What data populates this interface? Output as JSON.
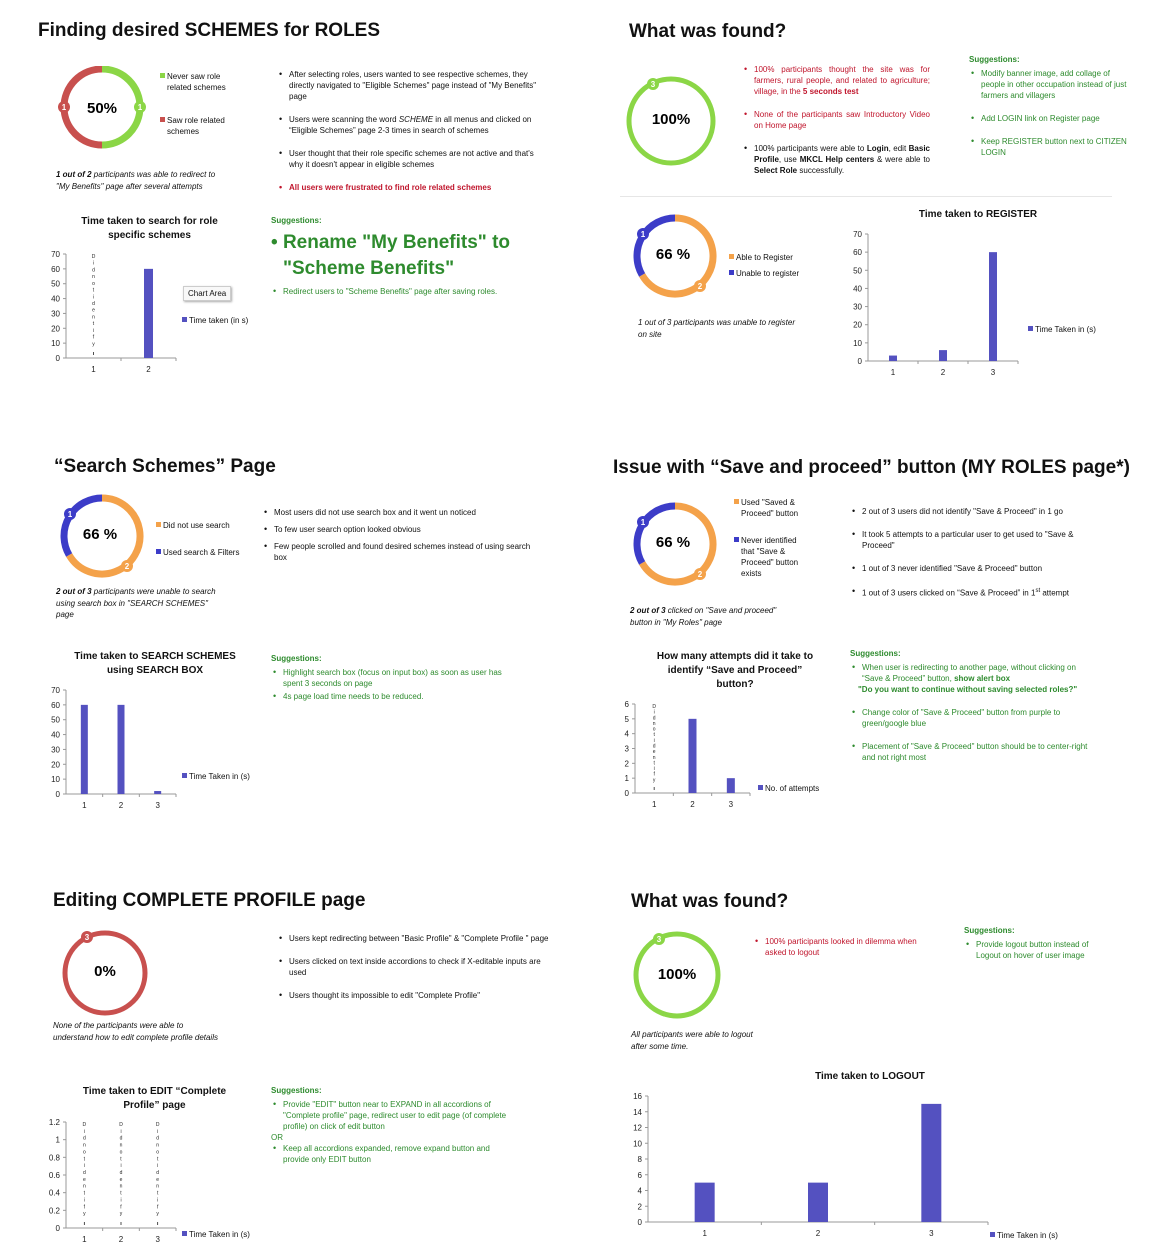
{
  "colors": {
    "bar": "#5451c0",
    "green": "#8bd646",
    "red": "#c8504e",
    "orange": "#f4a24a",
    "blue": "#3c3cc8"
  },
  "s1": {
    "title": "Finding desired SCHEMES for ROLES",
    "donut_pct": "50%",
    "marker_a": "1",
    "marker_b": "1",
    "legend_green": "Never saw role related schemes",
    "legend_red": "Saw role related schemes",
    "note": "1 out of 2 participants was able to redirect to \"My Benefits\" page after several attempts",
    "note_bold": "1 out of 2",
    "note_rest": " participants was able to redirect to \"My Benefits\" page after several attempts",
    "bullets": [
      "After selecting roles, users wanted to see respective schemes, they directly navigated to \"Eligible Schemes\" page instead of \"My Benefits\" page",
      "Users were scanning the word SCHEME in all menus and clicked on \"Eligible Schemes\" page 2-3 times in search of schemes",
      "User thought that their role specific schemes are not active and that's why it doesn't appear in eligible schemes",
      "All users were frustrated to find role related schemes"
    ],
    "sugg_title": "Suggestions:",
    "sugg_big": "Rename \"My Benefits\" to \"Scheme Benefits\"",
    "sugg_small": "Redirect users to \"Scheme Benefits\" page after saving roles.",
    "chart_area_label": "Chart Area"
  },
  "s2": {
    "title": "What was found?",
    "donut_pct": "100%",
    "marker": "3",
    "bullets_red": [
      "100% participants thought the site was for farmers, rural people, and related to agriculture; village, in the 5 seconds test",
      "None of the participants saw Introductory Video on Home page"
    ],
    "bullet_black": "100% participants were able to Login, edit Basic Profile, use MKCL Help centers & were able to Select Role successfully.",
    "sugg_title": "Suggestions:",
    "sugg": [
      "Modify banner image, add collage of people in other occupation instead of just farmers and villagers",
      "Add LOGIN link on Register page",
      "Keep REGISTER button next to CITIZEN LOGIN"
    ]
  },
  "s3": {
    "donut_pct": "66 %",
    "marker_a": "1",
    "marker_b": "2",
    "legend_orange": "Able to Register",
    "legend_blue": "Unable to register",
    "note": "1 out of 3 participants was unable to register on site"
  },
  "s4": {
    "title": "“Search Schemes” Page",
    "donut_pct": "66 %",
    "marker_a": "1",
    "marker_b": "2",
    "legend_orange": "Did not use search",
    "legend_blue": "Used search & Filters",
    "note_bold": "2 out of 3",
    "note_rest": " participants were unable to search using search box in \"SEARCH SCHEMES\" page",
    "bullets": [
      "Most users did not use search box and it went un noticed",
      "To few user search option looked obvious",
      "Few people scrolled and found desired schemes instead of using search box"
    ],
    "sugg_title": "Suggestions:",
    "sugg": [
      "Highlight search box (focus on input box) as soon as user has spent 3 seconds on page",
      "4s page load time needs to be reduced."
    ]
  },
  "s5": {
    "title": "Issue with “Save and proceed” button (MY ROLES page*)",
    "donut_pct": "66 %",
    "marker_a": "1",
    "marker_b": "2",
    "legend_orange": "Used \"Saved & Proceed\" button",
    "legend_blue": "Never identified that \"Save & Proceed\" button exists",
    "note_bold": "2 out of 3",
    "note_rest": " clicked on \"Save and proceed\" button in \"My Roles\" page",
    "bullets": [
      "2 out of 3 users did not identify \"Save & Proceed\" in 1 go",
      "It took 5 attempts to a particular user to get used to \"Save & Proceed\"",
      "1 out of 3 never identified \"Save & Proceed\" button",
      "1 out of 3 users clicked on \"Save & Proceed\" in 1st attempt"
    ],
    "sugg_title": "Suggestions:",
    "sugg1": "When user is redirecting to another page, without clicking on \"Save & Proceed\" button, show alert box",
    "sugg1_quote": "\"Do you want to continue without saving selected roles?\"",
    "sugg2": "Change color of \"Save & Proceed\" button from purple to green/google blue",
    "sugg3": "Placement of \"Save & Proceed\" button should be to center-right and not right most"
  },
  "s6": {
    "title": "Editing COMPLETE PROFILE page",
    "donut_pct": "0%",
    "marker": "3",
    "note": "None of the participants were able to understand how to edit complete profile details",
    "bullets": [
      "Users kept redirecting between \"Basic Profile\" & \"Complete Profile \" page",
      "Users clicked on text inside accordions to check if X-editable inputs are used",
      "Users thought its impossible to edit \"Complete Profile\""
    ],
    "sugg_title": "Suggestions:",
    "sugg1": "Provide \"EDIT\" button near to EXPAND in all accordions of \"Complete profile\" page, redirect user to edit page (of complete profile) on click of edit button",
    "or": "OR",
    "sugg2": "Keep all accordions expanded, remove expand button and provide only EDIT button"
  },
  "s7": {
    "title": "What was found?",
    "donut_pct": "100%",
    "marker": "3",
    "bullet": "100% participants looked in dilemma when asked to logout",
    "note": "All participants were able to logout after some time.",
    "sugg_title": "Suggestions:",
    "sugg": "Provide logout button instead of Logout on hover of user image"
  },
  "chart_data": [
    {
      "id": "c1",
      "type": "bar",
      "title": "Time taken to search for role specific schemes",
      "categories": [
        "1",
        "2"
      ],
      "series": [
        {
          "name": "Time taken (in s)",
          "values": [
            null,
            60
          ]
        }
      ],
      "ylim": [
        0,
        70
      ],
      "yticks": [
        0,
        10,
        20,
        30,
        40,
        50,
        60,
        70
      ],
      "bar_labels": [
        "Did not identify",
        ""
      ]
    },
    {
      "id": "c2",
      "type": "bar",
      "title": "Time taken to REGISTER",
      "categories": [
        "1",
        "2",
        "3"
      ],
      "series": [
        {
          "name": "Time Taken in (s)",
          "values": [
            3,
            6,
            60
          ]
        }
      ],
      "ylim": [
        0,
        70
      ],
      "yticks": [
        0,
        10,
        20,
        30,
        40,
        50,
        60,
        70
      ]
    },
    {
      "id": "c3",
      "type": "bar",
      "title": "Time taken to SEARCH SCHEMES using SEARCH BOX",
      "categories": [
        "1",
        "2",
        "3"
      ],
      "series": [
        {
          "name": "Time Taken in (s)",
          "values": [
            60,
            60,
            2
          ]
        }
      ],
      "ylim": [
        0,
        70
      ],
      "yticks": [
        0,
        10,
        20,
        30,
        40,
        50,
        60,
        70
      ]
    },
    {
      "id": "c4",
      "type": "bar",
      "title": "How many attempts did it take to identify “Save and Proceed” button?",
      "categories": [
        "1",
        "2",
        "3"
      ],
      "series": [
        {
          "name": "No. of attempts",
          "values": [
            null,
            5,
            1
          ]
        }
      ],
      "ylim": [
        0,
        6
      ],
      "yticks": [
        0,
        1,
        2,
        3,
        4,
        5,
        6
      ],
      "bar_labels": [
        "Did not identify",
        "",
        ""
      ]
    },
    {
      "id": "c5",
      "type": "bar",
      "title": "Time taken to EDIT “Complete Profile” page",
      "categories": [
        "1",
        "2",
        "3"
      ],
      "series": [
        {
          "name": "Time Taken in (s)",
          "values": [
            null,
            null,
            null
          ]
        }
      ],
      "ylim": [
        0,
        1.2
      ],
      "yticks": [
        0,
        0.2,
        0.4,
        0.6,
        0.8,
        1,
        1.2
      ],
      "bar_labels": [
        "Did not identify",
        "Did not identify",
        "Did not identify"
      ]
    },
    {
      "id": "c6",
      "type": "bar",
      "title": "Time taken to LOGOUT",
      "categories": [
        "1",
        "2",
        "3"
      ],
      "series": [
        {
          "name": "Time Taken in (s)",
          "values": [
            5,
            5,
            15
          ]
        }
      ],
      "ylim": [
        0,
        16
      ],
      "yticks": [
        0,
        2,
        4,
        6,
        8,
        10,
        12,
        14,
        16
      ]
    }
  ]
}
